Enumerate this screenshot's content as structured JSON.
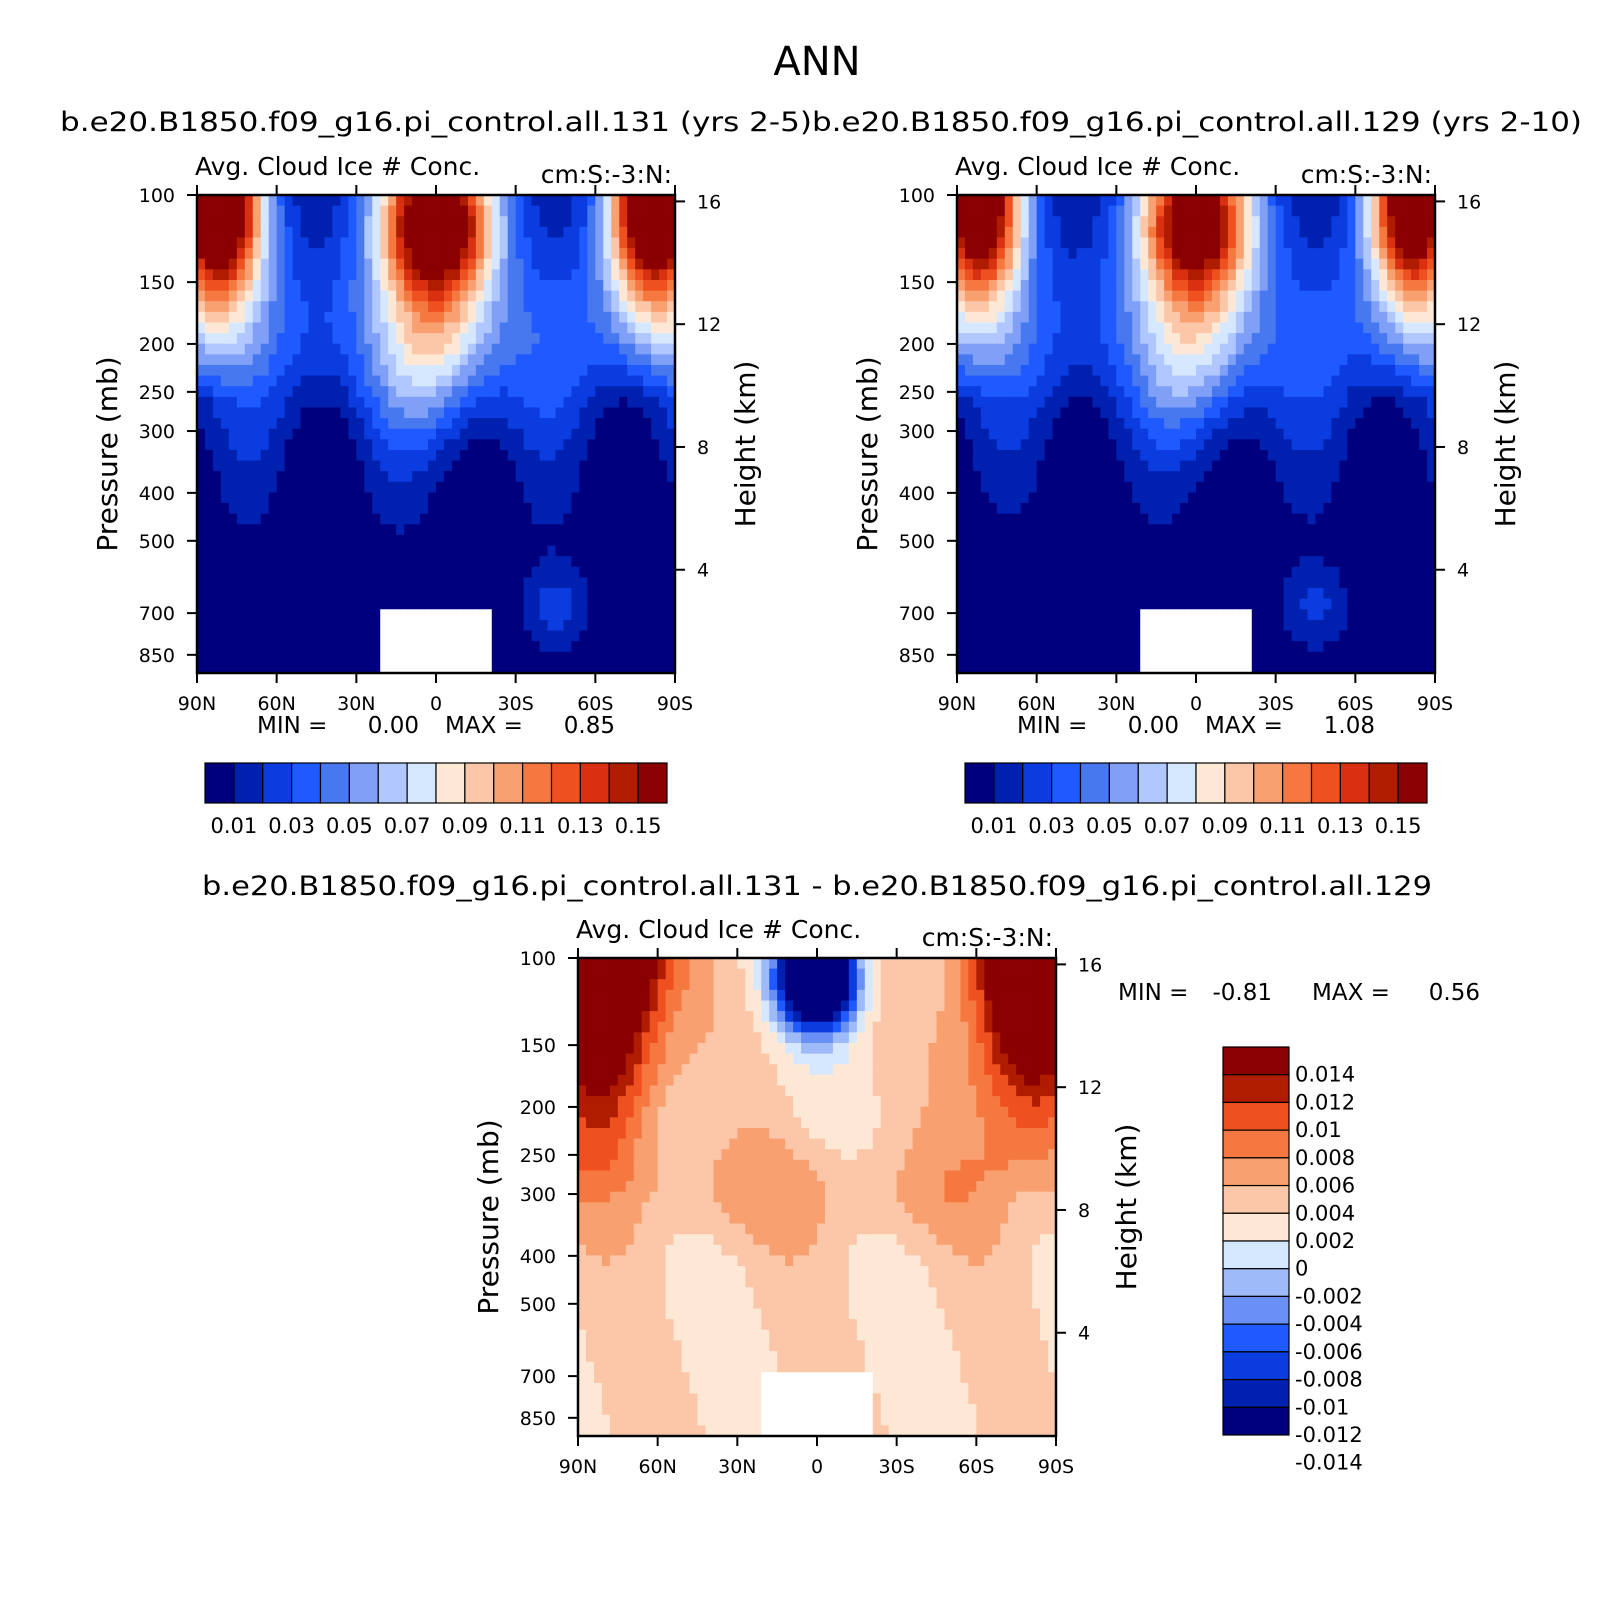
{
  "page_title": "ANN",
  "colors": {
    "level_palette": [
      "#00007f",
      "#0020b0",
      "#0a3ce0",
      "#1e5aff",
      "#4878f0",
      "#80a0f8",
      "#b0c8ff",
      "#d6e8ff",
      "#fde8d6",
      "#fbc7a8",
      "#f8a070",
      "#f57840",
      "#ef5020",
      "#d83010",
      "#b01c00",
      "#8b0000"
    ],
    "diff_palette": [
      "#00007f",
      "#0020b0",
      "#0a3ce0",
      "#1e5aff",
      "#6a8ff5",
      "#9fbaf8",
      "#d6e8ff",
      "#fde8d6",
      "#fbc7a8",
      "#f8a070",
      "#f57840",
      "#ef5020",
      "#b01c00",
      "#8b0000"
    ],
    "missing": "#ffffff"
  },
  "chart_data": [
    {
      "type": "heatmap",
      "panel": "top-left",
      "case_title": "b.e20.B1850.f09_g16.pi_control.all.131 (yrs 2-5)",
      "title": "Avg. Cloud Ice # Conc.",
      "units": "cm:S:-3:N:",
      "xlabel": "",
      "ylabel": "Pressure (mb)",
      "y2label": "Height (km)",
      "x_ticks": [
        "90N",
        "60N",
        "30N",
        "0",
        "30S",
        "60S",
        "90S"
      ],
      "y_ticks": [
        "100",
        "150",
        "200",
        "250",
        "300",
        "400",
        "500",
        "700",
        "850"
      ],
      "y2_ticks": [
        "16",
        "12",
        "8",
        "4"
      ],
      "ylim": [
        100,
        925
      ],
      "min_label": "MIN =",
      "min_value": "0.00",
      "max_label": "MAX =",
      "max_value": "0.85",
      "min": 0.0,
      "max": 0.85,
      "colorbar_labels": [
        "0.01",
        "0.03",
        "0.05",
        "0.07",
        "0.09",
        "0.11",
        "0.13",
        "0.15"
      ],
      "colorbar_levels": [
        0.01,
        0.02,
        0.03,
        0.04,
        0.05,
        0.06,
        0.07,
        0.08,
        0.09,
        0.1,
        0.11,
        0.12,
        0.13,
        0.14,
        0.15
      ]
    },
    {
      "type": "heatmap",
      "panel": "top-right",
      "case_title": "b.e20.B1850.f09_g16.pi_control.all.129 (yrs 2-10)",
      "title": "Avg. Cloud Ice # Conc.",
      "units": "cm:S:-3:N:",
      "xlabel": "",
      "ylabel": "Pressure (mb)",
      "y2label": "Height (km)",
      "x_ticks": [
        "90N",
        "60N",
        "30N",
        "0",
        "30S",
        "60S",
        "90S"
      ],
      "y_ticks": [
        "100",
        "150",
        "200",
        "250",
        "300",
        "400",
        "500",
        "700",
        "850"
      ],
      "y2_ticks": [
        "16",
        "12",
        "8",
        "4"
      ],
      "ylim": [
        100,
        925
      ],
      "min_label": "MIN =",
      "min_value": "0.00",
      "max_label": "MAX =",
      "max_value": "1.08",
      "min": 0.0,
      "max": 1.08,
      "colorbar_labels": [
        "0.01",
        "0.03",
        "0.05",
        "0.07",
        "0.09",
        "0.11",
        "0.13",
        "0.15"
      ],
      "colorbar_levels": [
        0.01,
        0.02,
        0.03,
        0.04,
        0.05,
        0.06,
        0.07,
        0.08,
        0.09,
        0.1,
        0.11,
        0.12,
        0.13,
        0.14,
        0.15
      ]
    },
    {
      "type": "heatmap",
      "panel": "bottom-difference",
      "case_title": "b.e20.B1850.f09_g16.pi_control.all.131 - b.e20.B1850.f09_g16.pi_control.all.129",
      "title": "Avg. Cloud Ice # Conc.",
      "units": "cm:S:-3:N:",
      "xlabel": "",
      "ylabel": "Pressure (mb)",
      "y2label": "Height (km)",
      "x_ticks": [
        "90N",
        "60N",
        "30N",
        "0",
        "30S",
        "60S",
        "90S"
      ],
      "y_ticks": [
        "100",
        "150",
        "200",
        "250",
        "300",
        "400",
        "500",
        "700",
        "850"
      ],
      "y2_ticks": [
        "16",
        "12",
        "8",
        "4"
      ],
      "ylim": [
        100,
        925
      ],
      "min_label": "MIN =",
      "min_value": "-0.81",
      "max_label": "MAX =",
      "max_value": "0.56",
      "min": -0.81,
      "max": 0.56,
      "colorbar_labels": [
        "0.014",
        "0.012",
        "0.01",
        "0.008",
        "0.006",
        "0.004",
        "0.002",
        "0",
        "-0.002",
        "-0.004",
        "-0.006",
        "-0.008",
        "-0.01",
        "-0.012",
        "-0.014"
      ],
      "colorbar_levels": [
        -0.014,
        -0.012,
        -0.01,
        -0.008,
        -0.006,
        -0.004,
        -0.002,
        0,
        0.002,
        0.004,
        0.006,
        0.008,
        0.01,
        0.012,
        0.014
      ]
    }
  ]
}
